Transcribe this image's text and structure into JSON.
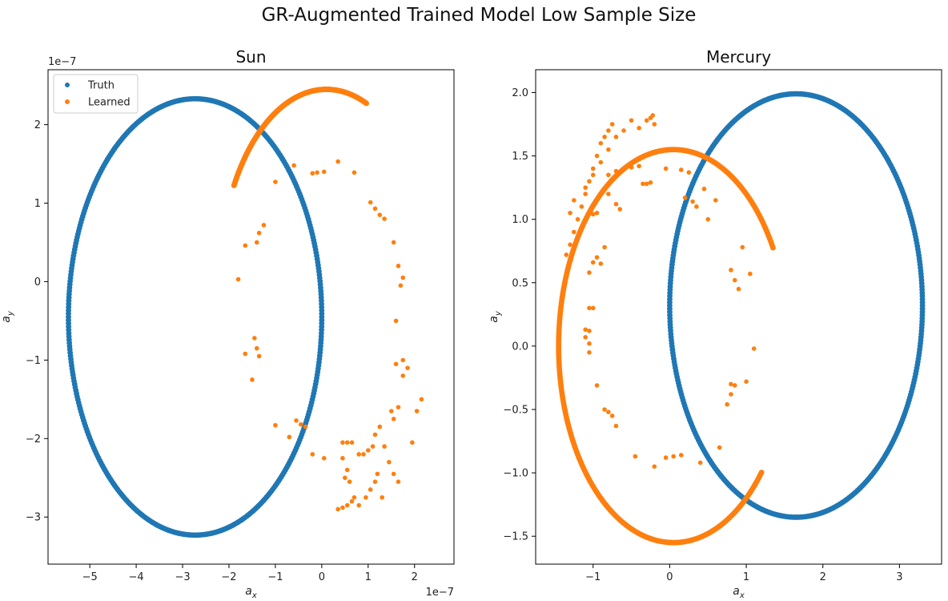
{
  "figure": {
    "title": "GR-Augmented Trained Model Low Sample Size"
  },
  "chart_data": [
    {
      "type": "scatter",
      "title": "Sun",
      "xlabel": "a_x",
      "ylabel": "a_y",
      "x_offset_text": "1e−7",
      "y_offset_text": "1e−7",
      "xlim": [
        -5.9,
        2.85
      ],
      "ylim": [
        -3.6,
        2.7
      ],
      "xticks": [
        -5,
        -4,
        -3,
        -2,
        -1,
        0,
        1,
        2
      ],
      "xtick_labels": [
        "−5",
        "−4",
        "−3",
        "−2",
        "−1",
        "0",
        "1",
        "2"
      ],
      "yticks": [
        -3,
        -2,
        -1,
        0,
        1,
        2
      ],
      "ytick_labels": [
        "−3",
        "−2",
        "−1",
        "0",
        "1",
        "2"
      ],
      "legend": {
        "position": "upper-left",
        "entries": [
          "Truth",
          "Learned"
        ]
      },
      "truth_ellipse": {
        "cx": -2.73,
        "cy": -0.45,
        "rx": 2.73,
        "ry": 2.78,
        "n_points": 420
      },
      "learned_arc": {
        "cx": 0.1,
        "cy": 0.0,
        "rx": 2.3,
        "ry": 2.45,
        "start_deg": 150,
        "end_deg": 232,
        "n_points": 300,
        "clockwise": true
      },
      "learned_scatter": [
        [
          -1.0,
          1.27
        ],
        [
          -0.6,
          1.48
        ],
        [
          -0.2,
          1.38
        ],
        [
          -0.1,
          1.39
        ],
        [
          0.05,
          1.4
        ],
        [
          0.35,
          1.53
        ],
        [
          0.7,
          1.39
        ],
        [
          1.05,
          1.01
        ],
        [
          1.15,
          0.93
        ],
        [
          1.25,
          0.85
        ],
        [
          1.35,
          0.8
        ],
        [
          1.55,
          0.5
        ],
        [
          -1.65,
          0.46
        ],
        [
          -1.4,
          0.5
        ],
        [
          -1.35,
          0.62
        ],
        [
          -1.25,
          0.72
        ],
        [
          -1.8,
          0.03
        ],
        [
          1.7,
          -0.05
        ],
        [
          1.75,
          0.05
        ],
        [
          1.65,
          0.2
        ],
        [
          1.6,
          -0.5
        ],
        [
          -1.45,
          -0.72
        ],
        [
          -1.4,
          -0.85
        ],
        [
          -1.35,
          -0.95
        ],
        [
          -1.65,
          -0.92
        ],
        [
          -1.5,
          -1.25
        ],
        [
          1.6,
          -1.05
        ],
        [
          1.75,
          -1.0
        ],
        [
          1.85,
          -1.1
        ],
        [
          1.75,
          -1.2
        ],
        [
          -1.0,
          -1.83
        ],
        [
          -0.7,
          -1.98
        ],
        [
          -0.55,
          -1.77
        ],
        [
          -0.45,
          -1.82
        ],
        [
          -0.35,
          -1.85
        ],
        [
          -0.2,
          -2.2
        ],
        [
          0.05,
          -2.25
        ],
        [
          0.45,
          -2.05
        ],
        [
          0.55,
          -2.05
        ],
        [
          0.65,
          -2.05
        ],
        [
          0.9,
          -2.2
        ],
        [
          1.0,
          -2.15
        ],
        [
          1.1,
          -2.1
        ],
        [
          1.15,
          -1.95
        ],
        [
          1.25,
          -1.85
        ],
        [
          1.5,
          -1.65
        ],
        [
          1.55,
          -1.75
        ],
        [
          1.65,
          -1.6
        ],
        [
          2.05,
          -1.65
        ],
        [
          2.15,
          -1.5
        ],
        [
          1.35,
          -2.1
        ],
        [
          1.45,
          -2.3
        ],
        [
          1.55,
          -2.45
        ],
        [
          1.65,
          -2.55
        ],
        [
          1.95,
          -2.05
        ],
        [
          0.45,
          -2.25
        ],
        [
          0.55,
          -2.4
        ],
        [
          0.6,
          -2.55
        ],
        [
          0.7,
          -2.75
        ],
        [
          0.8,
          -2.85
        ],
        [
          0.95,
          -2.75
        ],
        [
          1.05,
          -2.65
        ],
        [
          1.15,
          -2.55
        ],
        [
          1.2,
          -2.45
        ],
        [
          1.3,
          -2.75
        ],
        [
          0.35,
          -2.9
        ],
        [
          0.45,
          -2.88
        ],
        [
          0.55,
          -2.85
        ],
        [
          0.65,
          -2.8
        ],
        [
          0.8,
          -2.2
        ],
        [
          0.5,
          -2.5
        ]
      ]
    },
    {
      "type": "scatter",
      "title": "Mercury",
      "xlabel": "a_x",
      "ylabel": "a_y",
      "x_offset_text": "",
      "y_offset_text": "",
      "xlim": [
        -1.75,
        3.55
      ],
      "ylim": [
        -1.72,
        2.18
      ],
      "xticks": [
        -1,
        0,
        1,
        2,
        3
      ],
      "xtick_labels": [
        "−1",
        "0",
        "1",
        "2",
        "3"
      ],
      "yticks": [
        -1.5,
        -1.0,
        -0.5,
        0.0,
        0.5,
        1.0,
        1.5,
        2.0
      ],
      "ytick_labels": [
        "−1.5",
        "−1.0",
        "−0.5",
        "0.0",
        "0.5",
        "1.0",
        "1.5",
        "2.0"
      ],
      "truth_ellipse": {
        "cx": 1.65,
        "cy": 0.32,
        "rx": 1.65,
        "ry": 1.67,
        "n_points": 420
      },
      "learned_arc": {
        "cx": 0.05,
        "cy": 0.0,
        "rx": 1.5,
        "ry": 1.55,
        "start_deg": 30,
        "end_deg": 320,
        "n_points": 500,
        "clockwise": false
      },
      "learned_scatter": [
        [
          -1.35,
          0.72
        ],
        [
          -1.3,
          0.8
        ],
        [
          -1.25,
          0.9
        ],
        [
          -1.2,
          1.0
        ],
        [
          -1.15,
          1.1
        ],
        [
          -1.1,
          1.2
        ],
        [
          -1.05,
          1.3
        ],
        [
          -1.0,
          1.4
        ],
        [
          -0.95,
          1.5
        ],
        [
          -0.9,
          1.6
        ],
        [
          -0.85,
          1.65
        ],
        [
          -0.8,
          1.7
        ],
        [
          -0.75,
          1.75
        ],
        [
          -0.4,
          1.72
        ],
        [
          -0.3,
          1.78
        ],
        [
          -0.25,
          1.8
        ],
        [
          -0.22,
          1.82
        ],
        [
          -0.2,
          1.75
        ],
        [
          -1.3,
          1.05
        ],
        [
          -1.25,
          1.15
        ],
        [
          -1.1,
          1.25
        ],
        [
          -1.0,
          1.35
        ],
        [
          -0.9,
          1.45
        ],
        [
          -0.8,
          1.55
        ],
        [
          -0.7,
          1.65
        ],
        [
          -0.6,
          1.7
        ],
        [
          -0.5,
          1.78
        ],
        [
          -0.8,
          1.35
        ],
        [
          -0.7,
          1.38
        ],
        [
          -0.6,
          1.4
        ],
        [
          -0.5,
          1.41
        ],
        [
          -0.4,
          1.42
        ],
        [
          -0.35,
          1.28
        ],
        [
          -0.3,
          1.28
        ],
        [
          -0.25,
          1.29
        ],
        [
          -0.8,
          1.2
        ],
        [
          -0.7,
          1.12
        ],
        [
          -0.65,
          1.08
        ],
        [
          -0.95,
          1.05
        ],
        [
          -1.0,
          1.04
        ],
        [
          -1.05,
          0.58
        ],
        [
          -1.0,
          0.66
        ],
        [
          -0.95,
          0.7
        ],
        [
          -0.9,
          0.65
        ],
        [
          -0.85,
          0.78
        ],
        [
          -1.1,
          0.13
        ],
        [
          -1.05,
          0.12
        ],
        [
          -1.1,
          0.07
        ],
        [
          -1.05,
          0.02
        ],
        [
          -1.05,
          -0.05
        ],
        [
          -1.05,
          0.3
        ],
        [
          -1.0,
          0.3
        ],
        [
          -0.95,
          -0.31
        ],
        [
          -0.85,
          -0.5
        ],
        [
          -0.8,
          -0.52
        ],
        [
          -0.75,
          -0.55
        ],
        [
          -0.7,
          -0.63
        ],
        [
          -0.45,
          -0.87
        ],
        [
          -0.2,
          -0.95
        ],
        [
          -0.05,
          -0.88
        ],
        [
          0.05,
          -0.87
        ],
        [
          0.15,
          -0.86
        ],
        [
          0.4,
          -0.92
        ],
        [
          0.65,
          -0.8
        ],
        [
          0.75,
          -0.46
        ],
        [
          0.8,
          -0.38
        ],
        [
          0.85,
          -0.31
        ],
        [
          0.8,
          -0.3
        ],
        [
          1.0,
          -0.28
        ],
        [
          1.1,
          -0.02
        ],
        [
          0.8,
          0.6
        ],
        [
          0.85,
          0.52
        ],
        [
          0.9,
          0.45
        ],
        [
          0.95,
          0.78
        ],
        [
          1.05,
          0.57
        ],
        [
          0.15,
          1.39
        ],
        [
          0.25,
          1.37
        ],
        [
          0.45,
          1.24
        ],
        [
          0.2,
          1.17
        ],
        [
          0.3,
          1.14
        ],
        [
          0.35,
          1.1
        ],
        [
          0.6,
          1.15
        ],
        [
          0.5,
          1.0
        ],
        [
          -0.05,
          1.4
        ]
      ]
    }
  ]
}
